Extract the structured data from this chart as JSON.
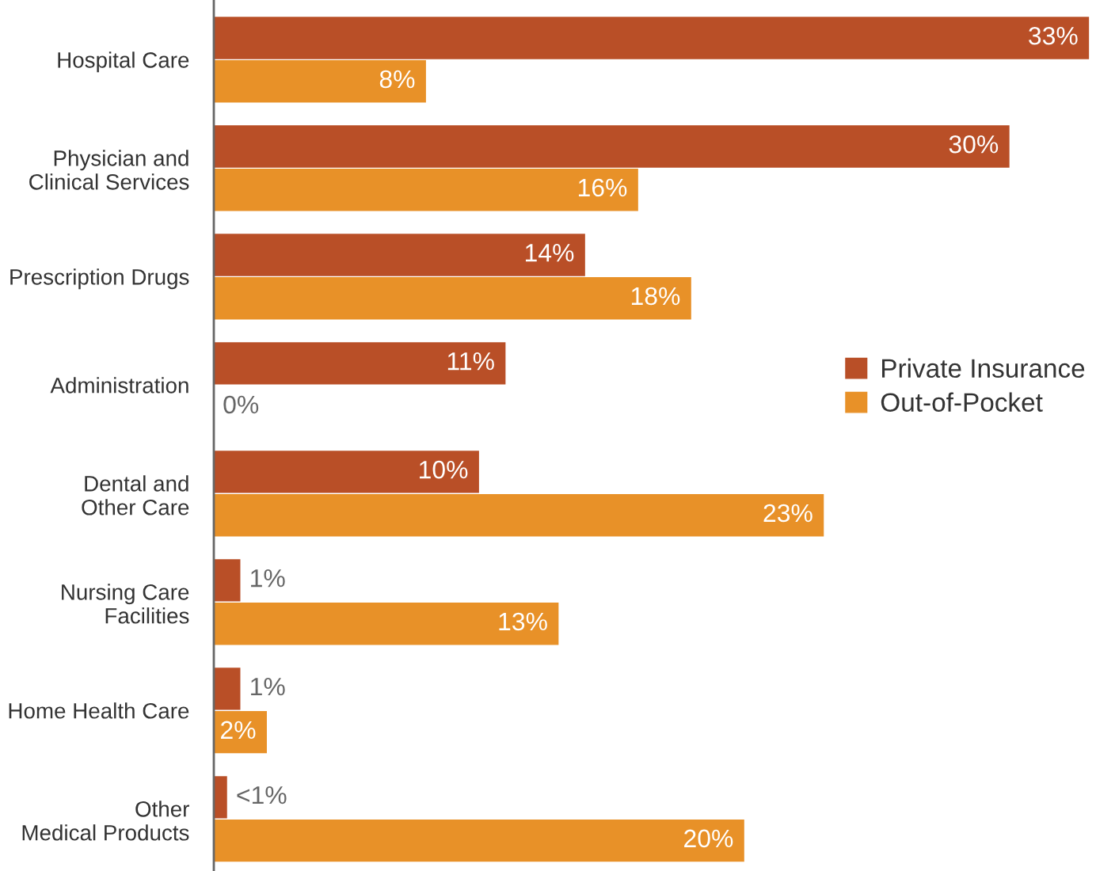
{
  "chart_data": {
    "type": "bar",
    "orientation": "horizontal",
    "categories": [
      "Hospital Care",
      "Physician and\nClinical Services",
      "Prescription Drugs",
      "Administration",
      "Dental and\nOther Care",
      "Nursing Care\nFacilities",
      "Home Health Care",
      "Other\nMedical Products"
    ],
    "series": [
      {
        "name": "Private Insurance",
        "color": "#b94f27",
        "values": [
          33,
          30,
          14,
          11,
          10,
          1,
          1,
          0.5
        ],
        "value_labels": [
          "33%",
          "30%",
          "14%",
          "11%",
          "10%",
          "1%",
          "1%",
          "<1%"
        ]
      },
      {
        "name": "Out-of-Pocket",
        "color": "#e89128",
        "values": [
          8,
          16,
          18,
          0,
          23,
          13,
          2,
          20
        ],
        "value_labels": [
          "8%",
          "16%",
          "18%",
          "0%",
          "23%",
          "13%",
          "2%",
          "20%"
        ]
      }
    ],
    "tick_labels": "y",
    "grid": false,
    "legend": "right"
  }
}
